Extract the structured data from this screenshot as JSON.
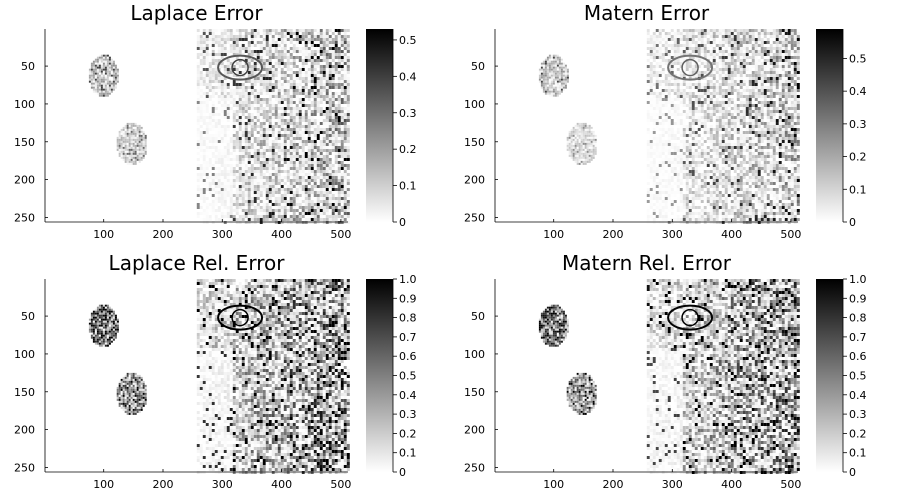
{
  "figure": {
    "background": "#ffffff"
  },
  "chart_data": [
    {
      "type": "heatmap",
      "title": "Laplace Error",
      "xlabel": "",
      "ylabel": "",
      "x_ticks": [
        100,
        200,
        300,
        400,
        500
      ],
      "y_ticks": [
        50,
        100,
        150,
        200,
        250
      ],
      "xlim": [
        1,
        512
      ],
      "ylim": [
        256,
        1
      ],
      "y_reversed": true,
      "colormap": "grays (white=0, black=max)",
      "colorbar": {
        "ticks": [
          "0",
          "0.1",
          "0.2",
          "0.3",
          "0.4",
          "0.5"
        ],
        "min": 0,
        "max": 0.53
      },
      "regions": {
        "left_half_background_value": 0,
        "ellipse_1": {
          "cx": 100,
          "cy": 63,
          "rx": 25,
          "ry": 28,
          "level": 0.25
        },
        "ellipse_2": {
          "cx": 148,
          "cy": 153,
          "rx": 26,
          "ry": 28,
          "level": 0.2
        },
        "right_half_x_range": [
          257,
          512
        ],
        "right_half_level": 0.3
      },
      "grid": false
    },
    {
      "type": "heatmap",
      "title": "Matern Error",
      "xlabel": "",
      "ylabel": "",
      "x_ticks": [
        100,
        200,
        300,
        400,
        500
      ],
      "y_ticks": [
        50,
        100,
        150,
        200,
        250
      ],
      "xlim": [
        1,
        512
      ],
      "ylim": [
        256,
        1
      ],
      "y_reversed": true,
      "colormap": "grays (white=0, black=max)",
      "colorbar": {
        "ticks": [
          "0",
          "0.1",
          "0.2",
          "0.3",
          "0.4",
          "0.5"
        ],
        "min": 0,
        "max": 0.59
      },
      "regions": {
        "left_half_background_value": 0,
        "ellipse_1": {
          "cx": 100,
          "cy": 63,
          "rx": 25,
          "ry": 28,
          "level": 0.25
        },
        "ellipse_2": {
          "cx": 148,
          "cy": 153,
          "rx": 26,
          "ry": 28,
          "level": 0.15
        },
        "right_half_x_range": [
          257,
          512
        ],
        "right_half_level": 0.25
      },
      "grid": false
    },
    {
      "type": "heatmap",
      "title": "Laplace Rel. Error",
      "xlabel": "",
      "ylabel": "",
      "x_ticks": [
        100,
        200,
        300,
        400,
        500
      ],
      "y_ticks": [
        50,
        100,
        150,
        200,
        250
      ],
      "xlim": [
        1,
        512
      ],
      "ylim": [
        256,
        1
      ],
      "y_reversed": true,
      "colormap": "grays (white=0, black=max)",
      "colorbar": {
        "ticks": [
          "0",
          "0.1",
          "0.2",
          "0.3",
          "0.4",
          "0.5",
          "0.6",
          "0.7",
          "0.8",
          "0.9",
          "1.0"
        ],
        "min": 0,
        "max": 1.0
      },
      "regions": {
        "left_half_background_value": 0,
        "ellipse_1": {
          "cx": 100,
          "cy": 63,
          "rx": 25,
          "ry": 28,
          "level": 0.6
        },
        "ellipse_2": {
          "cx": 148,
          "cy": 153,
          "rx": 26,
          "ry": 28,
          "level": 0.45
        },
        "right_half_x_range": [
          257,
          512
        ],
        "right_half_level": 0.5
      },
      "grid": false
    },
    {
      "type": "heatmap",
      "title": "Matern Rel. Error",
      "xlabel": "",
      "ylabel": "",
      "x_ticks": [
        100,
        200,
        300,
        400,
        500
      ],
      "y_ticks": [
        50,
        100,
        150,
        200,
        250
      ],
      "xlim": [
        1,
        512
      ],
      "ylim": [
        256,
        1
      ],
      "y_reversed": true,
      "colormap": "grays (white=0, black=max)",
      "colorbar": {
        "ticks": [
          "0",
          "0.1",
          "0.2",
          "0.3",
          "0.4",
          "0.5",
          "0.6",
          "0.7",
          "0.8",
          "0.9",
          "1.0"
        ],
        "min": 0,
        "max": 1.0
      },
      "regions": {
        "left_half_background_value": 0,
        "ellipse_1": {
          "cx": 100,
          "cy": 63,
          "rx": 25,
          "ry": 28,
          "level": 0.55
        },
        "ellipse_2": {
          "cx": 148,
          "cy": 153,
          "rx": 26,
          "ry": 28,
          "level": 0.4
        },
        "right_half_x_range": [
          257,
          512
        ],
        "right_half_level": 0.45
      },
      "grid": false
    }
  ]
}
